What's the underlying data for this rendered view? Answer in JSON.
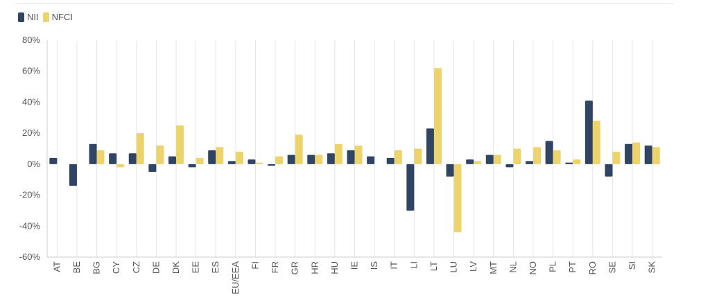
{
  "chart_data": {
    "type": "bar",
    "categories": [
      "AT",
      "BE",
      "BG",
      "CY",
      "CZ",
      "DE",
      "DK",
      "EE",
      "ES",
      "EU/EEA",
      "FI",
      "FR",
      "GR",
      "HR",
      "HU",
      "IE",
      "IS",
      "IT",
      "LI",
      "LT",
      "LU",
      "LV",
      "MT",
      "NL",
      "NO",
      "PL",
      "PT",
      "RO",
      "SE",
      "SI",
      "SK"
    ],
    "series": [
      {
        "name": "NII",
        "color": "#2f4563",
        "values": [
          4,
          -14,
          13,
          7,
          7,
          -5,
          5,
          -2,
          9,
          2,
          3,
          -1,
          6,
          6,
          7,
          9,
          5,
          4,
          -30,
          23,
          -8,
          3,
          6,
          -2,
          2,
          15,
          1,
          41,
          -8,
          13,
          12
        ]
      },
      {
        "name": "NFCI",
        "color": "#edd36b",
        "values": [
          0,
          0,
          9,
          -2,
          20,
          12,
          25,
          4,
          11,
          8,
          1,
          5,
          19,
          6,
          13,
          12,
          0,
          9,
          10,
          62,
          -44,
          2,
          6,
          10,
          11,
          9,
          3,
          28,
          8,
          14,
          11
        ]
      }
    ],
    "ylim": [
      -60,
      80
    ],
    "yticks": [
      -60,
      -40,
      -20,
      0,
      20,
      40,
      60,
      80
    ],
    "ytick_labels": [
      "-60%",
      "-40%",
      "-20%",
      "0%",
      "20%",
      "40%",
      "60%",
      "80%"
    ],
    "title": "",
    "xlabel": "",
    "ylabel": "",
    "grid": "vertical",
    "legend": "top-left"
  }
}
